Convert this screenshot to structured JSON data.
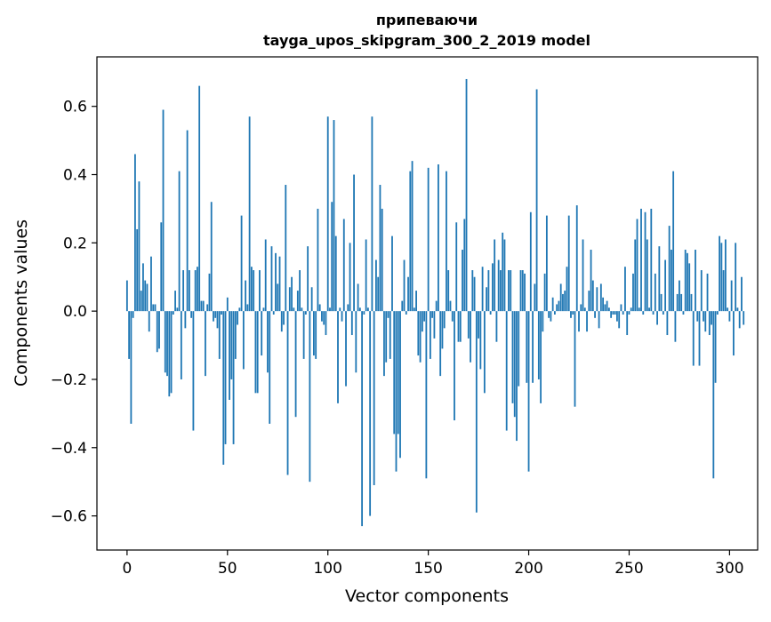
{
  "chart_data": {
    "type": "bar",
    "title": "припеваючи",
    "subtitle": "tayga_upos_skipgram_300_2_2019 model",
    "xlabel": "Vector components",
    "ylabel": "Components values",
    "xlim": [
      -15,
      314
    ],
    "ylim": [
      -0.7,
      0.745
    ],
    "xticks": [
      0,
      50,
      100,
      150,
      200,
      250,
      300
    ],
    "xtick_labels": [
      "0",
      "50",
      "100",
      "150",
      "200",
      "250",
      "300"
    ],
    "yticks": [
      -0.6,
      -0.4,
      -0.2,
      0.0,
      0.2,
      0.4,
      0.6
    ],
    "ytick_labels": [
      "−0.6",
      "−0.4",
      "−0.2",
      "0.0",
      "0.2",
      "0.4",
      "0.6"
    ],
    "grid": false,
    "legend": "none",
    "bar_color": "#1f77b4",
    "values": [
      0.09,
      -0.14,
      -0.33,
      -0.02,
      0.46,
      0.24,
      0.38,
      0.06,
      0.14,
      0.09,
      0.08,
      -0.06,
      0.16,
      0.02,
      0.02,
      -0.12,
      -0.11,
      0.26,
      0.59,
      -0.18,
      -0.19,
      -0.25,
      -0.24,
      -0.01,
      0.06,
      0.01,
      0.41,
      -0.2,
      0.12,
      -0.05,
      0.53,
      0.12,
      -0.02,
      -0.35,
      0.12,
      0.13,
      0.66,
      0.03,
      0.03,
      -0.19,
      0.02,
      0.11,
      0.32,
      -0.03,
      -0.02,
      -0.05,
      -0.14,
      -0.01,
      -0.45,
      -0.39,
      0.04,
      -0.26,
      -0.2,
      -0.39,
      -0.14,
      -0.04,
      0.01,
      0.28,
      -0.17,
      0.09,
      0.02,
      0.57,
      0.13,
      0.12,
      -0.24,
      -0.24,
      0.12,
      -0.13,
      0.01,
      0.21,
      -0.18,
      -0.33,
      0.19,
      -0.01,
      0.17,
      0.08,
      0.16,
      -0.06,
      -0.04,
      0.37,
      -0.48,
      0.07,
      0.1,
      0.01,
      -0.31,
      0.06,
      0.12,
      0.01,
      -0.14,
      -0.01,
      0.19,
      -0.5,
      0.07,
      -0.13,
      -0.14,
      0.3,
      0.02,
      -0.03,
      -0.04,
      -0.07,
      0.57,
      0.01,
      0.32,
      0.56,
      0.22,
      -0.27,
      0.01,
      -0.03,
      0.27,
      -0.22,
      0.02,
      0.2,
      -0.07,
      0.4,
      -0.18,
      0.08,
      0.01,
      -0.63,
      -0.01,
      0.21,
      0.01,
      -0.6,
      0.57,
      -0.51,
      0.15,
      0.1,
      0.37,
      0.3,
      -0.19,
      -0.15,
      -0.02,
      -0.14,
      0.22,
      -0.36,
      -0.47,
      -0.36,
      -0.43,
      0.03,
      0.15,
      -0.01,
      0.1,
      0.41,
      0.44,
      0.01,
      0.06,
      -0.13,
      -0.15,
      -0.06,
      -0.03,
      -0.49,
      0.42,
      -0.14,
      -0.02,
      -0.08,
      0.03,
      0.43,
      -0.19,
      -0.11,
      -0.05,
      0.41,
      0.12,
      0.03,
      -0.03,
      -0.32,
      0.26,
      -0.09,
      -0.09,
      0.18,
      0.27,
      0.68,
      -0.08,
      -0.15,
      0.12,
      0.1,
      -0.59,
      -0.08,
      -0.17,
      0.13,
      -0.24,
      0.07,
      0.12,
      -0.01,
      0.14,
      0.21,
      -0.09,
      0.15,
      0.12,
      0.23,
      0.21,
      -0.35,
      0.12,
      0.12,
      -0.27,
      -0.31,
      -0.38,
      -0.22,
      0.12,
      0.12,
      0.11,
      -0.21,
      -0.47,
      0.29,
      -0.21,
      0.08,
      0.65,
      -0.2,
      -0.27,
      -0.06,
      0.11,
      0.28,
      -0.02,
      -0.03,
      0.04,
      -0.01,
      0.02,
      0.03,
      0.08,
      0.05,
      0.06,
      0.13,
      0.28,
      -0.02,
      -0.01,
      -0.28,
      0.31,
      -0.06,
      0.02,
      0.21,
      0.01,
      -0.06,
      0.06,
      0.18,
      0.09,
      -0.02,
      0.07,
      -0.05,
      0.08,
      0.04,
      0.02,
      0.03,
      0.01,
      -0.02,
      -0.01,
      -0.01,
      -0.03,
      -0.05,
      0.02,
      -0.01,
      0.13,
      -0.07,
      -0.01,
      0.01,
      0.11,
      0.21,
      0.27,
      0.01,
      0.3,
      -0.01,
      0.29,
      0.21,
      0.01,
      0.3,
      -0.01,
      0.11,
      -0.04,
      0.19,
      0.05,
      -0.01,
      0.15,
      -0.07,
      0.25,
      0.18,
      0.41,
      -0.09,
      0.05,
      0.09,
      0.05,
      -0.01,
      0.18,
      0.17,
      0.14,
      0.05,
      -0.16,
      0.18,
      -0.03,
      -0.16,
      0.12,
      -0.03,
      -0.06,
      0.11,
      -0.07,
      -0.04,
      -0.49,
      -0.21,
      -0.01,
      0.22,
      0.2,
      0.12,
      0.21,
      0.01,
      -0.03,
      0.09,
      -0.13,
      0.2,
      0.01,
      -0.05,
      0.1,
      -0.04
    ]
  }
}
